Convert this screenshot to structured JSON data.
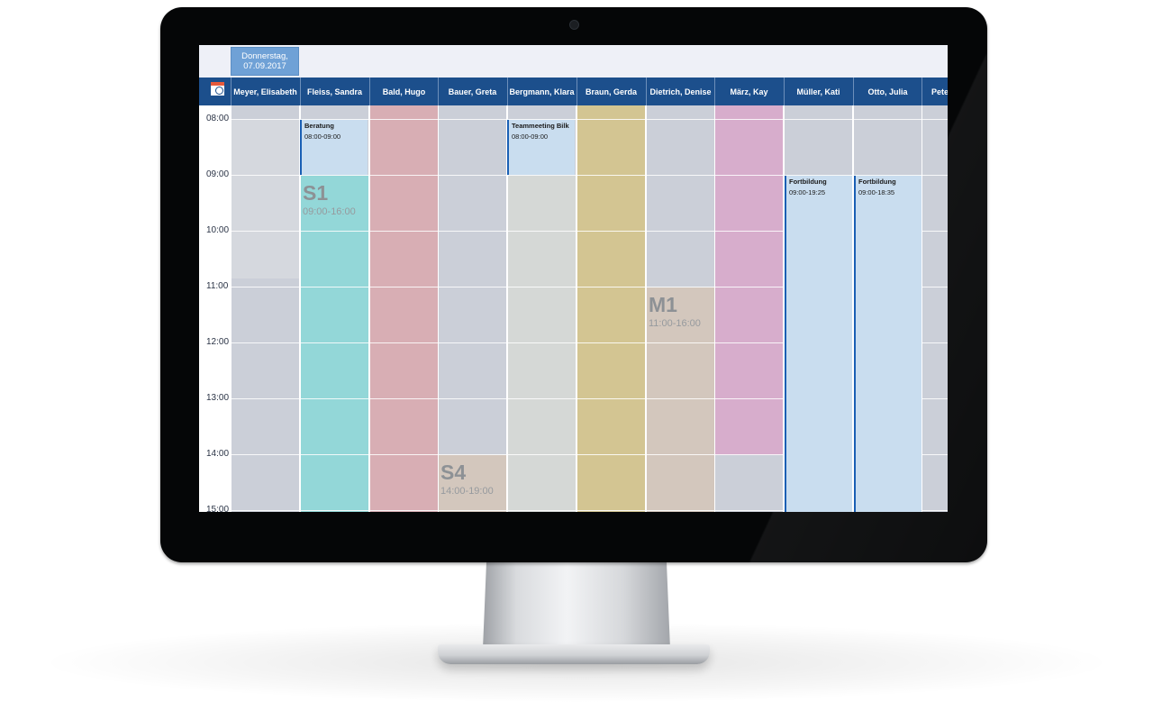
{
  "app": {
    "date_tab": {
      "day": "Donnerstag,",
      "date": "07.09.2017"
    }
  },
  "columns": [
    {
      "name": "Meyer, Elisabeth"
    },
    {
      "name": "Fleiss, Sandra"
    },
    {
      "name": "Bald, Hugo"
    },
    {
      "name": "Bauer, Greta"
    },
    {
      "name": "Bergmann, Klara"
    },
    {
      "name": "Braun, Gerda"
    },
    {
      "name": "Dietrich, Denise"
    },
    {
      "name": "März, Kay"
    },
    {
      "name": "Müller, Kati"
    },
    {
      "name": "Otto, Julia"
    },
    {
      "name": "Pete"
    }
  ],
  "times": [
    "08:00",
    "09:00",
    "10:00",
    "11:00",
    "12:00",
    "13:00",
    "14:00",
    "15:00"
  ],
  "events": [
    {
      "title": "Beratung",
      "time": "08:00-09:00"
    },
    {
      "title": "Teammeeting Bilk",
      "time": "08:00-09:00"
    },
    {
      "title": "Fortbildung",
      "time": "09:00-19:25"
    },
    {
      "title": "Fortbildung",
      "time": "09:00-18:35"
    }
  ],
  "shifts": [
    {
      "code": "S1",
      "time": "09:00-16:00"
    },
    {
      "code": "M1",
      "time": "11:00-16:00"
    },
    {
      "code": "S4",
      "time": "14:00-19:00"
    }
  ],
  "colors": {
    "header_bg": "#1c4f8c",
    "date_tab_bg": "#6fa1d6",
    "event_bg": "#c9ddef",
    "event_border": "#1a5fb4",
    "gray_cell": "#cbcfd8",
    "teal_shift": "#93d7d8",
    "red_column": "#d8aeb4",
    "olive_column": "#d3c592",
    "pink_column": "#d7adcc",
    "tan_shift": "#d3c7bd"
  }
}
